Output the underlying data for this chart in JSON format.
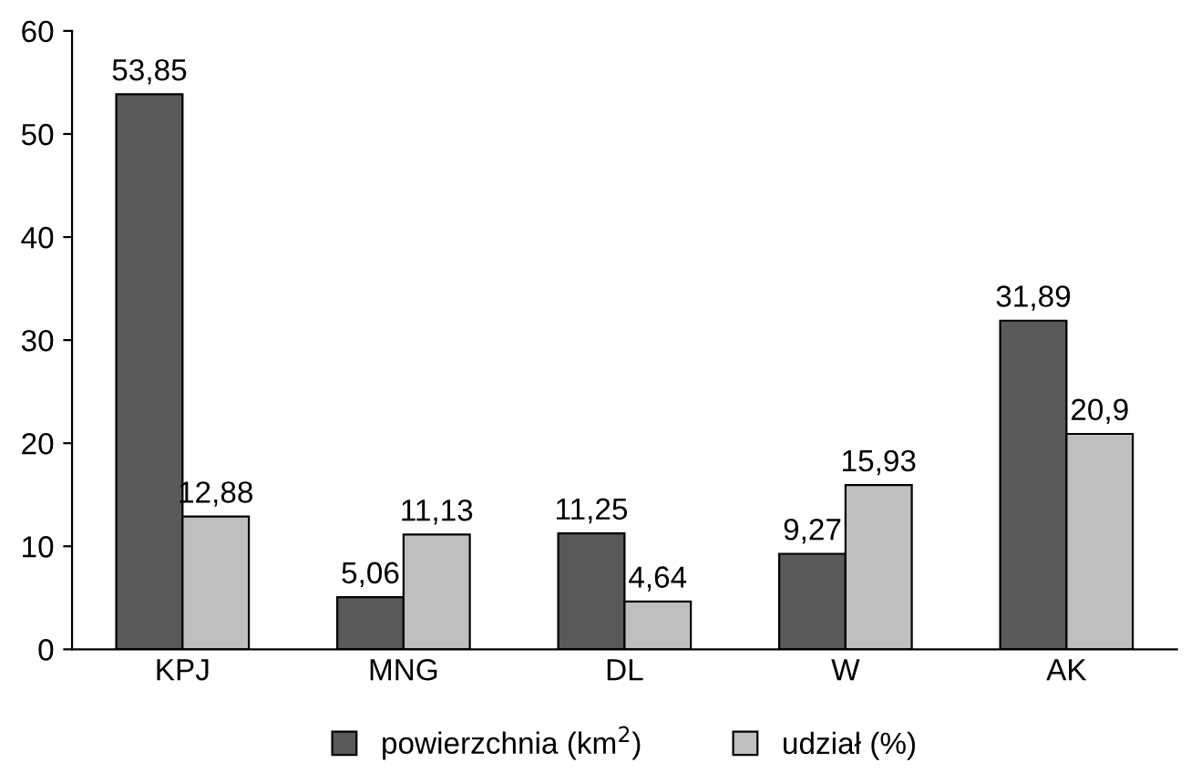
{
  "chart_data": {
    "type": "bar",
    "categories": [
      "KPJ",
      "MNG",
      "DL",
      "W",
      "AK"
    ],
    "series": [
      {
        "name": "powierzchnia (km$^{2}$)",
        "color": "#595959",
        "values": [
          53.85,
          5.06,
          11.25,
          9.27,
          31.89
        ],
        "value_labels": [
          "53,85",
          "5,06",
          "11,25",
          "9,27",
          "31,89"
        ]
      },
      {
        "name": "udział (%)",
        "color": "#bfbfbf",
        "values": [
          12.88,
          11.13,
          4.64,
          15.93,
          20.9
        ],
        "value_labels": [
          "12,88",
          "11,13",
          "4,64",
          "15,93",
          "20,9"
        ]
      }
    ],
    "ylim": [
      0,
      60
    ],
    "yticks": [
      0,
      10,
      20,
      30,
      40,
      50,
      60
    ],
    "grid": false,
    "legend": "bottom"
  }
}
